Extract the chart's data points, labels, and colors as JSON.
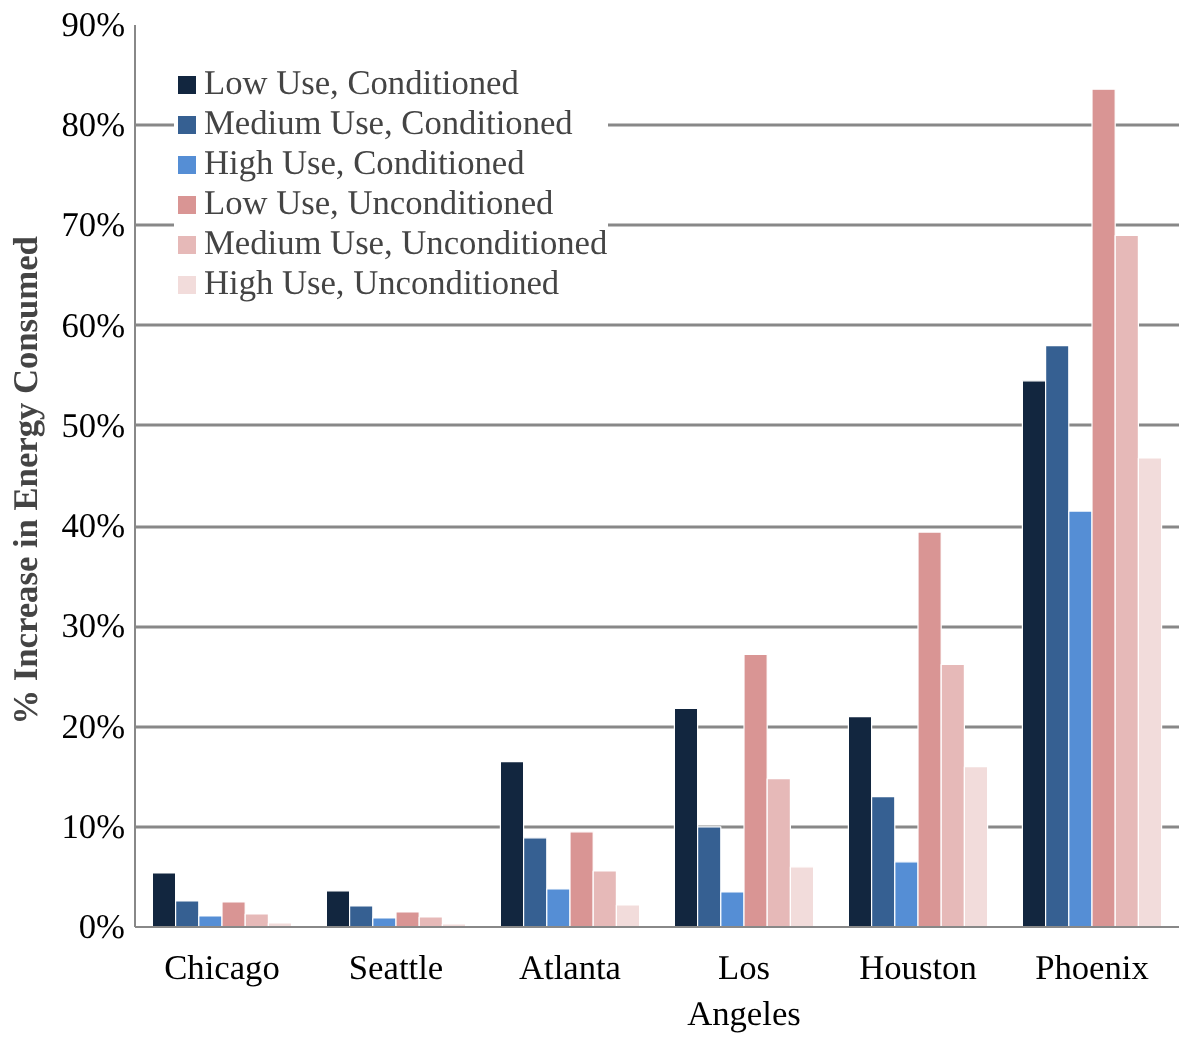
{
  "chart_data": {
    "type": "bar",
    "ylabel": "% Increase in  Energy Consumed",
    "categories": [
      "Chicago",
      "Seattle",
      "Atlanta",
      "Los\nAngeles",
      "Houston",
      "Phoenix"
    ],
    "series": [
      {
        "name": "Low Use, Conditioned",
        "color": "#12263f",
        "values": [
          5.4,
          3.6,
          16.5,
          21.8,
          21,
          54.5
        ]
      },
      {
        "name": "Medium Use, Conditioned",
        "color": "#366092",
        "values": [
          2.6,
          2.1,
          8.9,
          10,
          13,
          58
        ]
      },
      {
        "name": "High Use, Conditioned",
        "color": "#558ed5",
        "values": [
          1.1,
          0.9,
          3.8,
          3.5,
          6.5,
          41.5
        ]
      },
      {
        "name": "Low Use, Unconditioned",
        "color": "#d99594",
        "values": [
          2.5,
          1.5,
          9.5,
          27.2,
          39.4,
          83.6
        ]
      },
      {
        "name": "Medium Use, Unconditioned",
        "color": "#e6b9b8",
        "values": [
          1.3,
          1.0,
          5.6,
          14.8,
          26.2,
          69
        ]
      },
      {
        "name": "High Use, Unconditioned",
        "color": "#f2dcdb",
        "values": [
          0.4,
          0.3,
          2.2,
          6.0,
          16,
          46.8
        ]
      }
    ],
    "ylim": [
      0,
      90
    ],
    "yticks": [
      {
        "value": 0,
        "label": "0%"
      },
      {
        "value": 10,
        "label": "10%"
      },
      {
        "value": 20,
        "label": "20%"
      },
      {
        "value": 30,
        "label": "30%"
      },
      {
        "value": 40,
        "label": "40%"
      },
      {
        "value": 50,
        "label": "50%"
      },
      {
        "value": 60,
        "label": "60%"
      },
      {
        "value": 70,
        "label": "70%"
      },
      {
        "value": 80,
        "label": "80%"
      },
      {
        "value": 90,
        "label": "90%"
      }
    ],
    "grid": "y",
    "legend": "top left"
  }
}
